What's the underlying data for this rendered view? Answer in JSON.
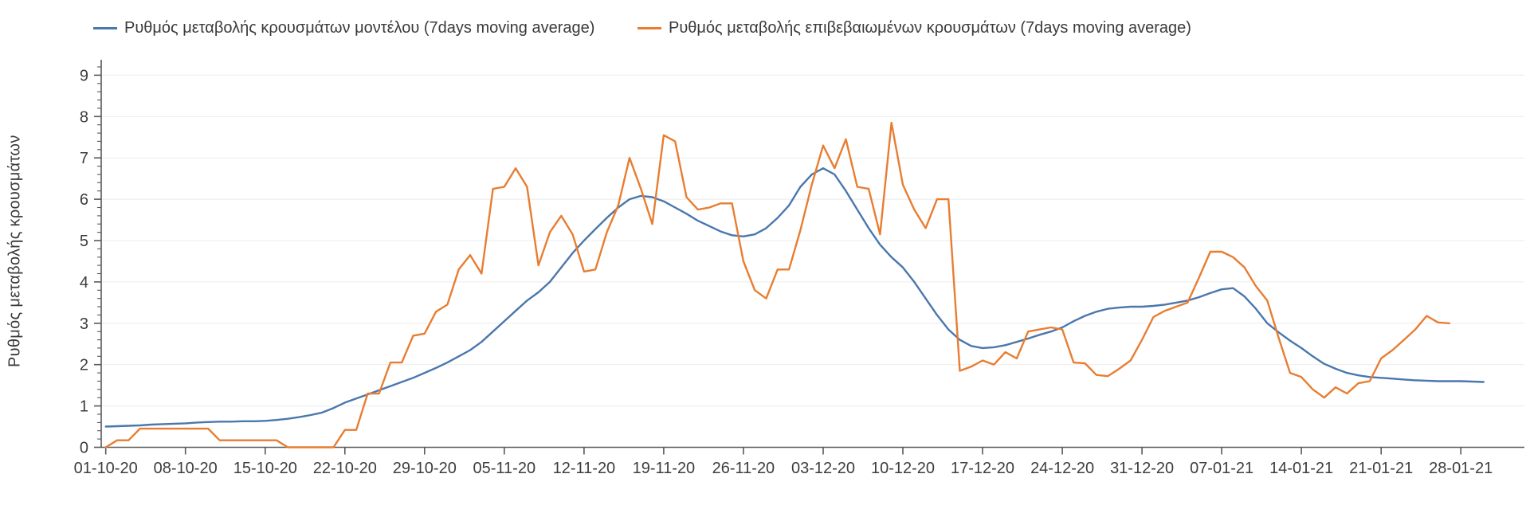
{
  "chart_data": {
    "type": "line",
    "title": "",
    "ylabel": "Ρυθμός μεταβολής κρουσμάτων",
    "xlabel": "",
    "ylim": [
      0,
      9.3
    ],
    "y_ticks": [
      0,
      1,
      2,
      3,
      4,
      5,
      6,
      7,
      8,
      9
    ],
    "y_minor_tick_step": 0.2,
    "grid": "horizontal-major",
    "legend_position": "top",
    "x_unit": "day",
    "x_start": "01-10-20",
    "x_tick_interval_days": 7,
    "x_tick_labels": [
      "01-10-20",
      "08-10-20",
      "15-10-20",
      "22-10-20",
      "29-10-20",
      "05-11-20",
      "12-11-20",
      "19-11-20",
      "26-11-20",
      "03-12-20",
      "10-12-20",
      "17-12-20",
      "24-12-20",
      "31-12-20",
      "07-01-21",
      "14-01-21",
      "21-01-21",
      "28-01-21"
    ],
    "grid_color": "#ebebeb",
    "axis_color": "#595959",
    "text_color": "#3d3d3d",
    "background_color": "#ffffff",
    "series": [
      {
        "name": "Ρυθμός μεταβολής κρουσμάτων μοντέλου (7days moving average)",
        "color": "#4a77ad",
        "data_name": "model-series-line",
        "start_date": "01-10-20",
        "values": [
          0.5,
          0.51,
          0.52,
          0.53,
          0.55,
          0.56,
          0.57,
          0.58,
          0.6,
          0.61,
          0.62,
          0.62,
          0.63,
          0.63,
          0.64,
          0.66,
          0.69,
          0.73,
          0.78,
          0.84,
          0.95,
          1.08,
          1.18,
          1.28,
          1.38,
          1.48,
          1.58,
          1.68,
          1.8,
          1.92,
          2.05,
          2.2,
          2.35,
          2.55,
          2.8,
          3.05,
          3.3,
          3.55,
          3.75,
          4.0,
          4.35,
          4.7,
          5.0,
          5.28,
          5.55,
          5.8,
          6.0,
          6.08,
          6.05,
          5.95,
          5.8,
          5.65,
          5.48,
          5.35,
          5.22,
          5.13,
          5.1,
          5.15,
          5.3,
          5.55,
          5.85,
          6.3,
          6.6,
          6.75,
          6.6,
          6.2,
          5.75,
          5.3,
          4.9,
          4.6,
          4.35,
          4.0,
          3.6,
          3.2,
          2.85,
          2.6,
          2.45,
          2.4,
          2.42,
          2.47,
          2.55,
          2.63,
          2.72,
          2.8,
          2.9,
          3.05,
          3.18,
          3.28,
          3.35,
          3.38,
          3.4,
          3.4,
          3.42,
          3.45,
          3.5,
          3.55,
          3.63,
          3.73,
          3.82,
          3.85,
          3.65,
          3.35,
          3.0,
          2.78,
          2.58,
          2.4,
          2.2,
          2.02,
          1.9,
          1.8,
          1.74,
          1.7,
          1.68,
          1.66,
          1.64,
          1.62,
          1.61,
          1.6,
          1.6,
          1.6,
          1.59,
          1.58
        ]
      },
      {
        "name": "Ρυθμός μεταβολής επιβεβαιωμένων κρουσμάτων (7days moving average)",
        "color": "#e87d31",
        "data_name": "confirmed-series-line",
        "start_date": "01-10-20",
        "values": [
          0.0,
          0.17,
          0.17,
          0.45,
          0.45,
          0.45,
          0.45,
          0.45,
          0.45,
          0.45,
          0.17,
          0.17,
          0.17,
          0.17,
          0.17,
          0.17,
          0.0,
          0.0,
          0.0,
          0.0,
          0.0,
          0.42,
          0.42,
          1.3,
          1.3,
          2.05,
          2.05,
          2.7,
          2.75,
          3.28,
          3.45,
          4.3,
          4.65,
          4.2,
          6.25,
          6.3,
          6.75,
          6.3,
          4.4,
          5.2,
          5.6,
          5.15,
          4.25,
          4.3,
          5.2,
          5.85,
          7.0,
          6.25,
          5.4,
          7.55,
          7.4,
          6.05,
          5.75,
          5.8,
          5.9,
          5.9,
          4.5,
          3.8,
          3.6,
          4.3,
          4.3,
          5.25,
          6.35,
          7.3,
          6.75,
          7.45,
          6.3,
          6.25,
          5.15,
          7.85,
          6.35,
          5.75,
          5.3,
          6.0,
          6.0,
          1.85,
          1.95,
          2.1,
          2.0,
          2.3,
          2.15,
          2.8,
          2.85,
          2.9,
          2.85,
          2.05,
          2.03,
          1.75,
          1.72,
          1.9,
          2.1,
          2.6,
          3.15,
          3.3,
          3.4,
          3.5,
          4.1,
          4.73,
          4.73,
          4.6,
          4.35,
          3.9,
          3.55,
          2.65,
          1.8,
          1.7,
          1.4,
          1.2,
          1.45,
          1.3,
          1.55,
          1.6,
          2.15,
          2.35,
          2.6,
          2.85,
          3.18,
          3.02,
          3.0
        ]
      }
    ]
  }
}
